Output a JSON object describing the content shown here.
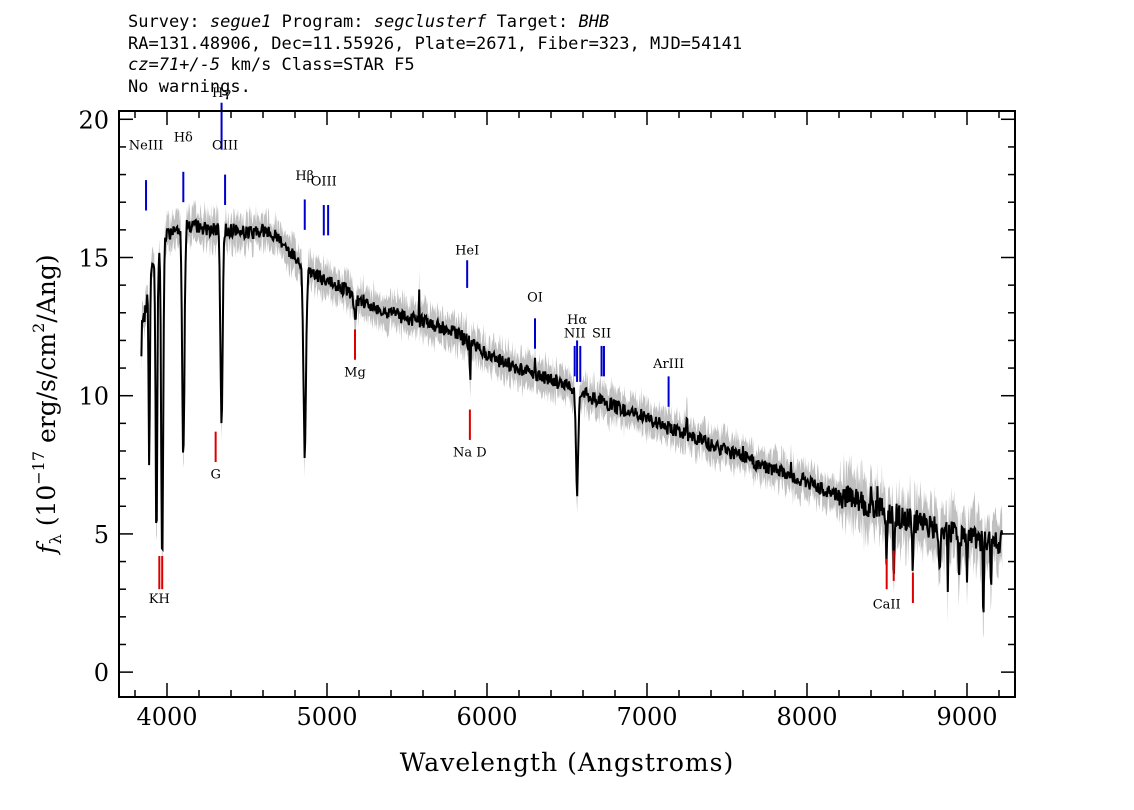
{
  "header": {
    "survey_label": "Survey:",
    "survey": "segue1",
    "program_label": "Program:",
    "program": "segclusterf",
    "target_label": "Target:",
    "target": "BHB",
    "line2": "RA=131.48906, Dec=11.55926, Plate=2671, Fiber=323, MJD=54141",
    "cz": "cz=71+/-5",
    "line3_rest": "km/s Class=STAR F5",
    "line4": "No warnings."
  },
  "chart_data": {
    "type": "line",
    "xlabel": "Wavelength (Angstroms)",
    "ylabel_parts": {
      "f": "f",
      "sub": "λ",
      "a": " (10",
      "exp": "−17",
      "b": " erg/s/cm",
      "exp2": "2",
      "c": "/Ang)"
    },
    "xlim": [
      3700,
      9300
    ],
    "ylim": [
      -0.9,
      20.3
    ],
    "xticks": [
      4000,
      5000,
      6000,
      7000,
      8000,
      9000
    ],
    "yticks": [
      0,
      5,
      10,
      15,
      20
    ],
    "colors": {
      "flux": "#000000",
      "error": "#c0c0c0",
      "emission": "#0000cc",
      "absorption": "#dd0000",
      "sky": "#000000"
    },
    "continuum": [
      [
        3850,
        12.5
      ],
      [
        3900,
        14.5
      ],
      [
        4000,
        15.8
      ],
      [
        4100,
        16.2
      ],
      [
        4200,
        16.1
      ],
      [
        4300,
        16.0
      ],
      [
        4400,
        16.0
      ],
      [
        4500,
        15.9
      ],
      [
        4600,
        16.0
      ],
      [
        4700,
        15.7
      ],
      [
        4800,
        15.0
      ],
      [
        4900,
        14.5
      ],
      [
        5000,
        14.1
      ],
      [
        5100,
        13.9
      ],
      [
        5200,
        13.5
      ],
      [
        5300,
        13.2
      ],
      [
        5400,
        13.0
      ],
      [
        5500,
        12.8
      ],
      [
        5600,
        12.7
      ],
      [
        5700,
        12.5
      ],
      [
        5800,
        12.3
      ],
      [
        5900,
        11.9
      ],
      [
        6000,
        11.5
      ],
      [
        6100,
        11.2
      ],
      [
        6200,
        11.0
      ],
      [
        6300,
        10.8
      ],
      [
        6400,
        10.6
      ],
      [
        6500,
        10.35
      ],
      [
        6600,
        10.1
      ],
      [
        6700,
        9.8
      ],
      [
        6800,
        9.6
      ],
      [
        6900,
        9.4
      ],
      [
        7000,
        9.2
      ],
      [
        7100,
        8.9
      ],
      [
        7200,
        8.7
      ],
      [
        7300,
        8.5
      ],
      [
        7400,
        8.2
      ],
      [
        7500,
        8.0
      ],
      [
        7600,
        7.8
      ],
      [
        7700,
        7.5
      ],
      [
        7800,
        7.3
      ],
      [
        7900,
        7.1
      ],
      [
        8000,
        6.9
      ],
      [
        8100,
        6.6
      ],
      [
        8200,
        6.4
      ],
      [
        8300,
        6.25
      ],
      [
        8400,
        6.0
      ],
      [
        8500,
        5.8
      ],
      [
        8600,
        5.6
      ],
      [
        8700,
        5.4
      ],
      [
        8800,
        5.25
      ],
      [
        8900,
        5.1
      ],
      [
        9000,
        4.9
      ],
      [
        9100,
        4.8
      ],
      [
        9200,
        4.7
      ]
    ],
    "absorption_features": [
      {
        "x": 3835,
        "depth": 4.5,
        "w": 3
      },
      {
        "x": 3889,
        "depth": 6.5,
        "w": 4
      },
      {
        "x": 3934,
        "depth": 10.5,
        "w": 5
      },
      {
        "x": 3970,
        "depth": 11.5,
        "w": 6
      },
      {
        "x": 4102,
        "depth": 8.5,
        "w": 7
      },
      {
        "x": 4341,
        "depth": 7.0,
        "w": 7
      },
      {
        "x": 4861,
        "depth": 6.8,
        "w": 8
      },
      {
        "x": 5175,
        "depth": 0.8,
        "w": 8
      },
      {
        "x": 5893,
        "depth": 1.8,
        "w": 4
      },
      {
        "x": 6563,
        "depth": 3.7,
        "w": 7
      },
      {
        "x": 8498,
        "depth": 1.8,
        "w": 4
      },
      {
        "x": 8542,
        "depth": 2.2,
        "w": 4
      },
      {
        "x": 8662,
        "depth": 1.8,
        "w": 4
      },
      {
        "x": 8830,
        "depth": 2.5,
        "w": 4
      },
      {
        "x": 8880,
        "depth": 1.8,
        "w": 3
      },
      {
        "x": 8950,
        "depth": 2.3,
        "w": 3
      },
      {
        "x": 9000,
        "depth": 1.8,
        "w": 3
      },
      {
        "x": 9102,
        "depth": 3.5,
        "w": 3
      },
      {
        "x": 9150,
        "depth": 1.5,
        "w": 3
      }
    ],
    "sky_spikes": [
      [
        5577,
        1.2
      ],
      [
        5890,
        0.8
      ],
      [
        6300,
        0.6
      ],
      [
        7250,
        0.4
      ],
      [
        7600,
        0.5
      ],
      [
        7900,
        0.5
      ],
      [
        8340,
        0.6
      ],
      [
        8400,
        0.7
      ],
      [
        8440,
        0.6
      ],
      [
        8830,
        0.6
      ],
      [
        8920,
        0.6
      ]
    ],
    "line_labels": [
      {
        "name": "NeIII",
        "tag": "ne3",
        "x": 3869,
        "kind": "emission",
        "bar_y": [
          16.7,
          17.8
        ],
        "label_y": 18.9
      },
      {
        "name": "Hδ",
        "tag": "hdelta",
        "x": 4102,
        "kind": "emission",
        "bar_y": [
          17.0,
          18.1
        ],
        "label_y": 19.2
      },
      {
        "name": "Hγ",
        "tag": "hgamma",
        "x": 4341,
        "kind": "emission",
        "bar_y": [
          18.9,
          20.6
        ],
        "label_y": 20.8
      },
      {
        "name": "OIII",
        "tag": "oiii-4363",
        "x": 4363,
        "kind": "emission",
        "bar_y": [
          16.9,
          18.0
        ],
        "label_y": 18.9
      },
      {
        "name": "Hβ",
        "tag": "hbeta",
        "x": 4861,
        "kind": "emission",
        "bar_y": [
          16.0,
          17.1
        ],
        "label_y": 17.8
      },
      {
        "name": "OIII",
        "tag": "oiii-5007",
        "x": 4980,
        "kind": "emission",
        "bar_y": [
          15.8,
          16.9
        ],
        "label_y": 17.6
      },
      {
        "name": "",
        "tag": "oiii-5007b",
        "x": 5007,
        "kind": "emission",
        "bar_y": [
          15.8,
          16.9
        ],
        "label_y": null
      },
      {
        "name": "Mg",
        "tag": "mg",
        "x": 5175,
        "kind": "absorption",
        "bar_y": [
          11.3,
          12.4
        ],
        "label_y": 10.7
      },
      {
        "name": "HeI",
        "tag": "hei",
        "x": 5876,
        "kind": "emission",
        "bar_y": [
          13.9,
          14.9
        ],
        "label_y": 15.1
      },
      {
        "name": "Na D",
        "tag": "na-d",
        "x": 5893,
        "kind": "absorption",
        "bar_y": [
          8.4,
          9.5
        ],
        "label_y": 7.8
      },
      {
        "name": "OI",
        "tag": "oi",
        "x": 6300,
        "kind": "emission",
        "bar_y": [
          11.7,
          12.8
        ],
        "label_y": 13.4
      },
      {
        "name": "NII",
        "tag": "nii",
        "x": 6548,
        "kind": "emission",
        "bar_y": [
          10.7,
          11.8
        ],
        "label_y": 12.1
      },
      {
        "name": "Hα",
        "tag": "halpha",
        "x": 6563,
        "kind": "emission",
        "bar_y": [
          10.5,
          12.0
        ],
        "label_y": 12.6
      },
      {
        "name": "",
        "tag": "nii-b",
        "x": 6583,
        "kind": "emission",
        "bar_y": [
          10.5,
          11.8
        ],
        "label_y": null
      },
      {
        "name": "SII",
        "tag": "sii",
        "x": 6716,
        "kind": "emission",
        "bar_y": [
          10.7,
          11.8
        ],
        "label_y": 12.1
      },
      {
        "name": "",
        "tag": "sii-b",
        "x": 6731,
        "kind": "emission",
        "bar_y": [
          10.7,
          11.8
        ],
        "label_y": null
      },
      {
        "name": "ArIII",
        "tag": "ariii",
        "x": 7135,
        "kind": "emission",
        "bar_y": [
          9.6,
          10.7
        ],
        "label_y": 11.0
      },
      {
        "name": "G",
        "tag": "g-band",
        "x": 4304,
        "kind": "absorption",
        "bar_y": [
          7.6,
          8.7
        ],
        "label_y": 7.0
      },
      {
        "name": "KH",
        "tag": "k-h",
        "x": 3952,
        "kind": "absorption",
        "bar_y": [
          3.0,
          4.2
        ],
        "label_y": 2.5
      },
      {
        "name": "",
        "tag": "h-b",
        "x": 3970,
        "kind": "absorption",
        "bar_y": [
          3.0,
          4.2
        ],
        "label_y": null
      },
      {
        "name": "CaII",
        "tag": "caii",
        "x": 8498,
        "kind": "absorption",
        "bar_y": [
          3.0,
          4.1
        ],
        "label_y": 2.3
      },
      {
        "name": "",
        "tag": "caii-b",
        "x": 8542,
        "kind": "absorption",
        "bar_y": [
          3.3,
          4.4
        ],
        "label_y": null
      },
      {
        "name": "",
        "tag": "caii-c",
        "x": 8662,
        "kind": "absorption",
        "bar_y": [
          2.5,
          3.6
        ],
        "label_y": null
      }
    ]
  }
}
